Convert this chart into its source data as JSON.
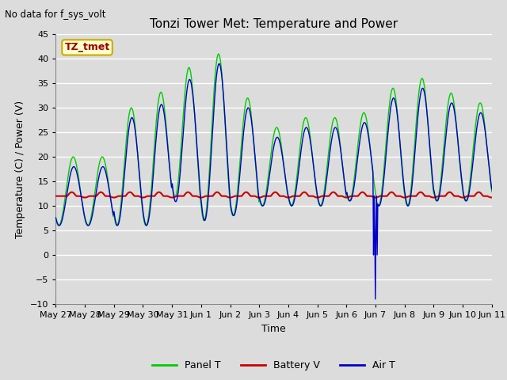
{
  "title": "Tonzi Tower Met: Temperature and Power",
  "top_left_text": "No data for f_sys_volt",
  "xlabel": "Time",
  "ylabel": "Temperature (C) / Power (V)",
  "ylim": [
    -10,
    45
  ],
  "yticks": [
    -10,
    -5,
    0,
    5,
    10,
    15,
    20,
    25,
    30,
    35,
    40,
    45
  ],
  "xlim": [
    0,
    15
  ],
  "bg_color": "#dcdcdc",
  "plot_bg_color": "#dcdcdc",
  "panel_color": "#00cc00",
  "battery_color": "#cc0000",
  "air_color": "#0000cc",
  "annotation_label": "TZ_tmet",
  "annotation_color": "#990000",
  "annotation_bg": "#ffffcc",
  "annotation_border": "#ccaa00",
  "grid_color": "#ffffff",
  "day_labels": [
    "May 27",
    "May 28",
    "May 29",
    "May 30",
    "May 31",
    "Jun 1",
    "Jun 2",
    "Jun 3",
    "Jun 4",
    "Jun 5",
    "Jun 6",
    "Jun 7",
    "Jun 8",
    "Jun 9",
    "Jun 10",
    "Jun 11"
  ],
  "legend_entries": [
    "Panel T",
    "Battery V",
    "Air T"
  ]
}
